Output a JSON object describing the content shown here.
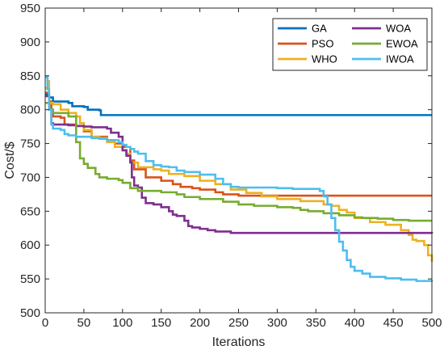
{
  "chart_data": {
    "type": "line",
    "title": "",
    "xlabel": "Iterations",
    "ylabel": "Cost/$",
    "xlim": [
      0,
      500
    ],
    "ylim": [
      500,
      950
    ],
    "xticks": [
      0,
      50,
      100,
      150,
      200,
      250,
      300,
      350,
      400,
      450,
      500
    ],
    "yticks": [
      500,
      550,
      600,
      650,
      700,
      750,
      800,
      850,
      900,
      950
    ],
    "grid": false,
    "legend_position": "top-right",
    "series": [
      {
        "name": "GA",
        "color": "#0072BD",
        "points": [
          [
            0,
            822
          ],
          [
            5,
            818
          ],
          [
            10,
            812
          ],
          [
            30,
            810
          ],
          [
            35,
            805
          ],
          [
            50,
            804
          ],
          [
            55,
            800
          ],
          [
            70,
            799
          ],
          [
            72,
            792
          ],
          [
            500,
            792
          ]
        ]
      },
      {
        "name": "PSO",
        "color": "#D95319",
        "points": [
          [
            0,
            825
          ],
          [
            5,
            812
          ],
          [
            8,
            800
          ],
          [
            10,
            790
          ],
          [
            20,
            788
          ],
          [
            25,
            778
          ],
          [
            40,
            776
          ],
          [
            50,
            768
          ],
          [
            60,
            760
          ],
          [
            80,
            755
          ],
          [
            90,
            750
          ],
          [
            100,
            745
          ],
          [
            110,
            725
          ],
          [
            115,
            712
          ],
          [
            130,
            700
          ],
          [
            150,
            695
          ],
          [
            165,
            690
          ],
          [
            175,
            686
          ],
          [
            190,
            684
          ],
          [
            200,
            682
          ],
          [
            220,
            678
          ],
          [
            230,
            675
          ],
          [
            250,
            673
          ],
          [
            500,
            673
          ]
        ]
      },
      {
        "name": "WHO",
        "color": "#EDB120",
        "points": [
          [
            0,
            832
          ],
          [
            3,
            842
          ],
          [
            5,
            810
          ],
          [
            10,
            808
          ],
          [
            20,
            800
          ],
          [
            30,
            795
          ],
          [
            40,
            790
          ],
          [
            45,
            780
          ],
          [
            50,
            770
          ],
          [
            60,
            760
          ],
          [
            70,
            758
          ],
          [
            80,
            752
          ],
          [
            90,
            745
          ],
          [
            100,
            740
          ],
          [
            105,
            735
          ],
          [
            110,
            722
          ],
          [
            120,
            715
          ],
          [
            140,
            712
          ],
          [
            150,
            710
          ],
          [
            160,
            705
          ],
          [
            180,
            702
          ],
          [
            200,
            695
          ],
          [
            220,
            690
          ],
          [
            240,
            682
          ],
          [
            260,
            677
          ],
          [
            280,
            672
          ],
          [
            300,
            668
          ],
          [
            330,
            665
          ],
          [
            350,
            665
          ],
          [
            360,
            660
          ],
          [
            370,
            658
          ],
          [
            380,
            652
          ],
          [
            390,
            648
          ],
          [
            400,
            640
          ],
          [
            420,
            634
          ],
          [
            440,
            630
          ],
          [
            460,
            622
          ],
          [
            470,
            615
          ],
          [
            475,
            608
          ],
          [
            480,
            606
          ],
          [
            490,
            600
          ],
          [
            495,
            585
          ],
          [
            500,
            575
          ]
        ]
      },
      {
        "name": "WOA",
        "color": "#7E2F8E",
        "points": [
          [
            0,
            820
          ],
          [
            5,
            800
          ],
          [
            8,
            780
          ],
          [
            10,
            778
          ],
          [
            30,
            777
          ],
          [
            40,
            776
          ],
          [
            50,
            775
          ],
          [
            60,
            774
          ],
          [
            70,
            774
          ],
          [
            80,
            772
          ],
          [
            85,
            766
          ],
          [
            95,
            760
          ],
          [
            100,
            740
          ],
          [
            105,
            732
          ],
          [
            110,
            722
          ],
          [
            112,
            700
          ],
          [
            115,
            688
          ],
          [
            120,
            685
          ],
          [
            125,
            670
          ],
          [
            130,
            662
          ],
          [
            140,
            660
          ],
          [
            150,
            656
          ],
          [
            160,
            650
          ],
          [
            165,
            645
          ],
          [
            170,
            643
          ],
          [
            180,
            636
          ],
          [
            185,
            628
          ],
          [
            190,
            626
          ],
          [
            200,
            624
          ],
          [
            210,
            622
          ],
          [
            220,
            620
          ],
          [
            240,
            618
          ],
          [
            300,
            618
          ],
          [
            500,
            617
          ]
        ]
      },
      {
        "name": "EWOA",
        "color": "#77AC30",
        "points": [
          [
            0,
            810
          ],
          [
            5,
            800
          ],
          [
            10,
            795
          ],
          [
            20,
            795
          ],
          [
            30,
            790
          ],
          [
            40,
            752
          ],
          [
            45,
            728
          ],
          [
            50,
            720
          ],
          [
            55,
            714
          ],
          [
            65,
            705
          ],
          [
            70,
            700
          ],
          [
            80,
            698
          ],
          [
            95,
            696
          ],
          [
            100,
            692
          ],
          [
            110,
            684
          ],
          [
            120,
            680
          ],
          [
            150,
            678
          ],
          [
            170,
            675
          ],
          [
            180,
            671
          ],
          [
            200,
            668
          ],
          [
            230,
            664
          ],
          [
            250,
            660
          ],
          [
            270,
            658
          ],
          [
            300,
            656
          ],
          [
            320,
            655
          ],
          [
            330,
            652
          ],
          [
            340,
            650
          ],
          [
            360,
            647
          ],
          [
            380,
            644
          ],
          [
            400,
            641
          ],
          [
            410,
            640
          ],
          [
            430,
            639
          ],
          [
            450,
            637
          ],
          [
            470,
            636
          ],
          [
            500,
            636
          ]
        ]
      },
      {
        "name": "IWOA",
        "color": "#4DBEEE",
        "points": [
          [
            0,
            848
          ],
          [
            3,
            830
          ],
          [
            5,
            800
          ],
          [
            8,
            778
          ],
          [
            10,
            772
          ],
          [
            20,
            770
          ],
          [
            25,
            764
          ],
          [
            30,
            762
          ],
          [
            40,
            760
          ],
          [
            60,
            758
          ],
          [
            70,
            757
          ],
          [
            80,
            755
          ],
          [
            90,
            755
          ],
          [
            95,
            752
          ],
          [
            100,
            748
          ],
          [
            105,
            745
          ],
          [
            110,
            742
          ],
          [
            115,
            738
          ],
          [
            120,
            735
          ],
          [
            130,
            724
          ],
          [
            140,
            718
          ],
          [
            150,
            716
          ],
          [
            160,
            715
          ],
          [
            170,
            710
          ],
          [
            180,
            708
          ],
          [
            200,
            704
          ],
          [
            220,
            698
          ],
          [
            230,
            690
          ],
          [
            240,
            686
          ],
          [
            250,
            685
          ],
          [
            280,
            685
          ],
          [
            300,
            684
          ],
          [
            320,
            683
          ],
          [
            340,
            683
          ],
          [
            355,
            680
          ],
          [
            360,
            672
          ],
          [
            365,
            660
          ],
          [
            370,
            640
          ],
          [
            375,
            622
          ],
          [
            380,
            605
          ],
          [
            385,
            592
          ],
          [
            390,
            578
          ],
          [
            395,
            568
          ],
          [
            400,
            562
          ],
          [
            410,
            558
          ],
          [
            420,
            553
          ],
          [
            440,
            551
          ],
          [
            460,
            549
          ],
          [
            480,
            547
          ],
          [
            500,
            546
          ]
        ]
      }
    ]
  }
}
